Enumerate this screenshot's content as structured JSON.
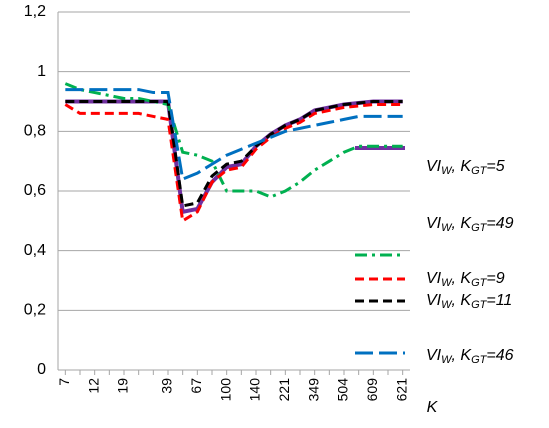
{
  "chart_data": {
    "type": "line",
    "x_label": "K",
    "categories": [
      "7",
      null,
      "12",
      null,
      "19",
      null,
      null,
      "39",
      null,
      "67",
      null,
      "100",
      null,
      "140",
      null,
      "221",
      null,
      "349",
      null,
      "504",
      null,
      "609",
      null,
      "621"
    ],
    "ylim": [
      0,
      1.2
    ],
    "yticks": [
      {
        "value": 0,
        "label": "0"
      },
      {
        "value": 0.2,
        "label": "0,2"
      },
      {
        "value": 0.4,
        "label": "0,4"
      },
      {
        "value": 0.6,
        "label": "0,6"
      },
      {
        "value": 0.8,
        "label": "0,8"
      },
      {
        "value": 1,
        "label": "1"
      },
      {
        "value": 1.2,
        "label": "1,2"
      }
    ],
    "grid": true,
    "series": [
      {
        "name": "VIW, KGT=5",
        "color": "#7030a0",
        "dash": "solid",
        "values": [
          0.9,
          0.9,
          0.9,
          0.9,
          0.9,
          0.9,
          0.9,
          0.9,
          0.53,
          0.54,
          0.63,
          0.68,
          0.69,
          0.75,
          0.79,
          0.82,
          0.84,
          0.87,
          0.88,
          0.89,
          0.895,
          0.9,
          0.9,
          0.9
        ]
      },
      {
        "name": "VIW, KGT=49",
        "color": "#00b050",
        "dash": "dashdot",
        "values": [
          0.96,
          0.94,
          0.93,
          0.92,
          0.91,
          0.91,
          0.9,
          0.89,
          0.73,
          0.72,
          0.7,
          0.6,
          0.6,
          0.6,
          0.58,
          0.6,
          0.63,
          0.67,
          0.7,
          0.73,
          0.75,
          0.75,
          0.75,
          0.75
        ]
      },
      {
        "name": "VIW, KGT=9",
        "color": "#ff0000",
        "dash": "dashed",
        "values": [
          0.89,
          0.86,
          0.86,
          0.86,
          0.86,
          0.86,
          0.85,
          0.84,
          0.5,
          0.53,
          0.63,
          0.67,
          0.68,
          0.74,
          0.78,
          0.81,
          0.83,
          0.86,
          0.87,
          0.88,
          0.885,
          0.89,
          0.89,
          0.89
        ]
      },
      {
        "name": "VIW, KGT=11",
        "color": "#000000",
        "dash": "dashed",
        "values": [
          0.9,
          0.9,
          0.9,
          0.9,
          0.9,
          0.9,
          0.9,
          0.9,
          0.55,
          0.56,
          0.65,
          0.69,
          0.7,
          0.75,
          0.79,
          0.82,
          0.84,
          0.87,
          0.88,
          0.89,
          0.895,
          0.9,
          0.9,
          0.9
        ]
      },
      {
        "name": "VIW, KGT=46",
        "color": "#0070c0",
        "dash": "longdash",
        "values": [
          0.94,
          0.94,
          0.94,
          0.94,
          0.94,
          0.94,
          0.93,
          0.93,
          0.64,
          0.66,
          0.69,
          0.72,
          0.74,
          0.76,
          0.78,
          0.8,
          0.81,
          0.82,
          0.83,
          0.84,
          0.85,
          0.85,
          0.85,
          0.85
        ]
      }
    ]
  }
}
